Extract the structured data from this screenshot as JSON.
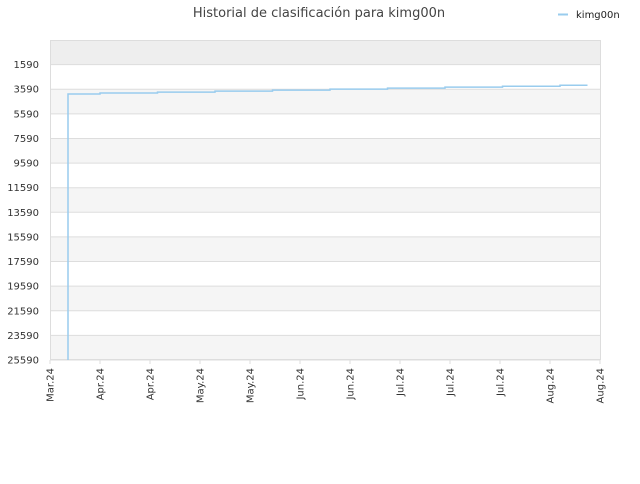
{
  "chart_data": {
    "type": "line",
    "title": "Historial de clasificación para kimg00n",
    "series": [
      {
        "name": "kimg00n",
        "color": "#99ccee",
        "points": [
          {
            "x": 0.36,
            "y": 25590
          },
          {
            "x": 0.36,
            "y": 3980
          },
          {
            "x": 1.0,
            "y": 3980
          },
          {
            "x": 1.0,
            "y": 3900
          },
          {
            "x": 2.15,
            "y": 3900
          },
          {
            "x": 2.15,
            "y": 3820
          },
          {
            "x": 3.3,
            "y": 3820
          },
          {
            "x": 3.3,
            "y": 3740
          },
          {
            "x": 4.45,
            "y": 3740
          },
          {
            "x": 4.45,
            "y": 3660
          },
          {
            "x": 5.6,
            "y": 3660
          },
          {
            "x": 5.6,
            "y": 3580
          },
          {
            "x": 6.75,
            "y": 3580
          },
          {
            "x": 6.75,
            "y": 3500
          },
          {
            "x": 7.9,
            "y": 3500
          },
          {
            "x": 7.9,
            "y": 3420
          },
          {
            "x": 9.05,
            "y": 3420
          },
          {
            "x": 9.05,
            "y": 3340
          },
          {
            "x": 10.2,
            "y": 3340
          },
          {
            "x": 10.2,
            "y": 3260
          },
          {
            "x": 10.75,
            "y": 3260
          }
        ]
      }
    ],
    "x_tick_labels": [
      "Mar.24",
      "Apr.24",
      "Apr.24",
      "May.24",
      "May.24",
      "Jun.24",
      "Jun.24",
      "Jul.24",
      "Jul.24",
      "Jul.24",
      "Aug.24",
      "Aug.24"
    ],
    "xlim": [
      0,
      11
    ],
    "y_tick_labels": [
      "1590",
      "3590",
      "5590",
      "7590",
      "9590",
      "11590",
      "13590",
      "15590",
      "17590",
      "19590",
      "21590",
      "23590",
      "25590"
    ],
    "ylim": [
      -410,
      25590
    ],
    "y_inverted": true,
    "grid": true,
    "legend_position": "top-right",
    "band_colors": [
      "#eeeeee",
      "#f5f5f5",
      "#ffffff"
    ],
    "axis_color": "#dddddd"
  }
}
